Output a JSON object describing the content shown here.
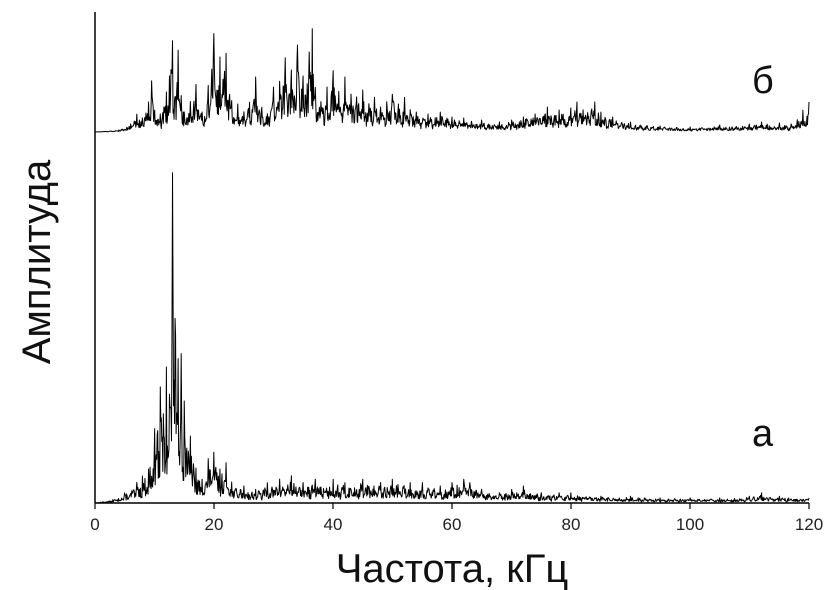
{
  "chart_data": {
    "type": "line",
    "title": "",
    "xlabel": "Частота, кГц",
    "ylabel": "Амплитуда",
    "xlim": [
      0,
      120
    ],
    "x_ticks": [
      "0",
      "20",
      "40",
      "60",
      "80",
      "100",
      "120"
    ],
    "y_ticks_labeled": false,
    "grid": false,
    "legend": "none",
    "line_color": "#000000",
    "series": [
      {
        "name": "б",
        "peaks": [
          [
            0,
            0.0
          ],
          [
            4,
            0.02
          ],
          [
            6,
            0.08
          ],
          [
            7,
            0.18
          ],
          [
            8,
            0.14
          ],
          [
            9,
            0.3
          ],
          [
            9.5,
            0.52
          ],
          [
            10,
            0.22
          ],
          [
            11,
            0.18
          ],
          [
            12,
            0.4
          ],
          [
            12.5,
            0.55
          ],
          [
            13,
            0.95
          ],
          [
            13.5,
            0.3
          ],
          [
            14,
            0.85
          ],
          [
            14.5,
            0.35
          ],
          [
            15,
            0.2
          ],
          [
            16,
            0.3
          ],
          [
            17,
            0.48
          ],
          [
            18,
            0.2
          ],
          [
            19,
            0.45
          ],
          [
            20,
            1.0
          ],
          [
            20.5,
            0.4
          ],
          [
            21,
            0.75
          ],
          [
            22,
            0.8
          ],
          [
            23,
            0.3
          ],
          [
            24,
            0.28
          ],
          [
            25,
            0.2
          ],
          [
            26,
            0.3
          ],
          [
            27,
            0.55
          ],
          [
            28,
            0.25
          ],
          [
            29,
            0.18
          ],
          [
            30,
            0.45
          ],
          [
            31,
            0.5
          ],
          [
            32,
            0.75
          ],
          [
            33,
            0.62
          ],
          [
            34,
            0.88
          ],
          [
            35,
            0.55
          ],
          [
            36,
            0.8
          ],
          [
            36.5,
            1.05
          ],
          [
            37,
            0.45
          ],
          [
            38,
            0.3
          ],
          [
            39,
            0.45
          ],
          [
            40,
            0.62
          ],
          [
            41,
            0.4
          ],
          [
            42,
            0.55
          ],
          [
            43,
            0.38
          ],
          [
            44,
            0.35
          ],
          [
            45,
            0.42
          ],
          [
            46,
            0.28
          ],
          [
            47,
            0.35
          ],
          [
            48,
            0.25
          ],
          [
            49,
            0.3
          ],
          [
            50,
            0.38
          ],
          [
            51,
            0.28
          ],
          [
            52,
            0.35
          ],
          [
            53,
            0.22
          ],
          [
            54,
            0.2
          ],
          [
            56,
            0.18
          ],
          [
            58,
            0.2
          ],
          [
            60,
            0.15
          ],
          [
            62,
            0.14
          ],
          [
            65,
            0.12
          ],
          [
            68,
            0.1
          ],
          [
            70,
            0.12
          ],
          [
            72,
            0.15
          ],
          [
            74,
            0.18
          ],
          [
            76,
            0.25
          ],
          [
            78,
            0.22
          ],
          [
            80,
            0.24
          ],
          [
            81,
            0.3
          ],
          [
            82,
            0.22
          ],
          [
            84,
            0.3
          ],
          [
            85,
            0.2
          ],
          [
            87,
            0.15
          ],
          [
            90,
            0.1
          ],
          [
            95,
            0.06
          ],
          [
            100,
            0.05
          ],
          [
            105,
            0.07
          ],
          [
            110,
            0.08
          ],
          [
            112,
            0.1
          ],
          [
            115,
            0.09
          ],
          [
            117,
            0.08
          ],
          [
            118,
            0.12
          ],
          [
            119,
            0.22
          ],
          [
            120,
            0.3
          ]
        ]
      },
      {
        "name": "а",
        "peaks": [
          [
            0,
            0.0
          ],
          [
            3,
            0.01
          ],
          [
            5,
            0.03
          ],
          [
            7,
            0.06
          ],
          [
            8,
            0.08
          ],
          [
            9,
            0.1
          ],
          [
            10,
            0.22
          ],
          [
            10.5,
            0.2
          ],
          [
            11,
            0.35
          ],
          [
            11.5,
            0.26
          ],
          [
            12,
            0.4
          ],
          [
            12.5,
            0.3
          ],
          [
            13,
            1.0
          ],
          [
            13.5,
            0.5
          ],
          [
            14,
            0.42
          ],
          [
            14.5,
            0.44
          ],
          [
            15,
            0.3
          ],
          [
            16,
            0.2
          ],
          [
            17,
            0.1
          ],
          [
            18,
            0.07
          ],
          [
            19,
            0.13
          ],
          [
            20,
            0.15
          ],
          [
            21,
            0.1
          ],
          [
            22,
            0.12
          ],
          [
            23,
            0.06
          ],
          [
            25,
            0.05
          ],
          [
            27,
            0.04
          ],
          [
            29,
            0.06
          ],
          [
            31,
            0.07
          ],
          [
            33,
            0.08
          ],
          [
            35,
            0.06
          ],
          [
            37,
            0.07
          ],
          [
            40,
            0.07
          ],
          [
            42,
            0.06
          ],
          [
            45,
            0.07
          ],
          [
            48,
            0.06
          ],
          [
            50,
            0.07
          ],
          [
            53,
            0.06
          ],
          [
            55,
            0.06
          ],
          [
            58,
            0.05
          ],
          [
            60,
            0.06
          ],
          [
            62,
            0.07
          ],
          [
            63,
            0.06
          ],
          [
            65,
            0.04
          ],
          [
            68,
            0.03
          ],
          [
            70,
            0.04
          ],
          [
            72,
            0.05
          ],
          [
            75,
            0.03
          ],
          [
            78,
            0.03
          ],
          [
            80,
            0.03
          ],
          [
            85,
            0.02
          ],
          [
            90,
            0.02
          ],
          [
            95,
            0.015
          ],
          [
            100,
            0.015
          ],
          [
            105,
            0.015
          ],
          [
            110,
            0.02
          ],
          [
            112,
            0.03
          ],
          [
            115,
            0.02
          ],
          [
            120,
            0.015
          ]
        ]
      }
    ]
  }
}
